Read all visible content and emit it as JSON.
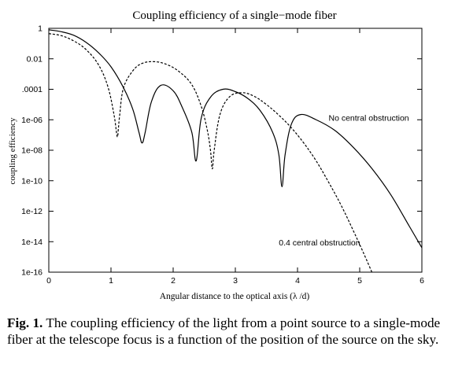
{
  "chart_data": {
    "type": "line",
    "title": "Coupling efficiency of a single−mode fiber",
    "xlabel": "Angular distance to the optical axis (λ /d)",
    "ylabel": "coupling efficiency",
    "xlim": [
      0,
      6
    ],
    "ylim": [
      1e-16,
      1
    ],
    "yscale": "log",
    "xticks": [
      "0",
      "1",
      "2",
      "3",
      "4",
      "5",
      "6"
    ],
    "yticks": [
      {
        "value": 1,
        "label": "1"
      },
      {
        "value": 0.01,
        "label": "0.01"
      },
      {
        "value": 0.0001,
        "label": ".0001"
      },
      {
        "value": 1e-06,
        "label": "1e-06"
      },
      {
        "value": 1e-08,
        "label": "1e-08"
      },
      {
        "value": 1e-10,
        "label": "1e-10"
      },
      {
        "value": 1e-12,
        "label": "1e-12"
      },
      {
        "value": 1e-14,
        "label": "1e-14"
      },
      {
        "value": 1e-16,
        "label": "1e-16"
      }
    ],
    "grid": false,
    "series": [
      {
        "name": "No central obstruction",
        "style": "solid",
        "color": "#000000",
        "x": [
          0,
          0.2,
          0.4,
          0.6,
          0.8,
          1.0,
          1.2,
          1.35,
          1.45,
          1.5,
          1.55,
          1.65,
          1.8,
          2.0,
          2.15,
          2.3,
          2.37,
          2.45,
          2.6,
          2.8,
          3.0,
          3.2,
          3.4,
          3.6,
          3.7,
          3.75,
          3.8,
          3.9,
          4.05,
          4.3,
          4.6,
          4.9,
          5.2,
          5.5,
          5.8,
          6.0
        ],
        "y": [
          0.8,
          0.6,
          0.35,
          0.12,
          0.025,
          0.003,
          0.00013,
          5e-06,
          1.5e-07,
          3e-08,
          1.5e-07,
          1.5e-05,
          0.00018,
          8e-05,
          6e-06,
          1.5e-07,
          2e-09,
          1.2e-06,
          3e-05,
          0.0001,
          7e-05,
          2.5e-05,
          4e-06,
          1.5e-07,
          5e-09,
          4e-11,
          5e-09,
          5e-07,
          2.2e-06,
          1e-06,
          2e-07,
          1.5e-08,
          6e-10,
          1.2e-11,
          1e-13,
          4e-15
        ]
      },
      {
        "name": "0.4 central obstruction",
        "style": "dashed",
        "color": "#000000",
        "x": [
          0,
          0.2,
          0.4,
          0.6,
          0.8,
          0.95,
          1.05,
          1.1,
          1.12,
          1.14,
          1.2,
          1.35,
          1.5,
          1.7,
          1.9,
          2.1,
          2.3,
          2.45,
          2.55,
          2.6,
          2.63,
          2.66,
          2.75,
          2.9,
          3.1,
          3.3,
          3.5,
          3.7,
          3.9,
          4.1,
          4.3,
          4.5,
          4.7,
          4.9,
          5.1,
          5.3
        ],
        "y": [
          0.45,
          0.33,
          0.15,
          0.04,
          0.004,
          0.00015,
          2e-06,
          8e-08,
          3e-07,
          2e-06,
          0.00012,
          0.0016,
          0.005,
          0.0065,
          0.0042,
          0.0014,
          0.0002,
          8e-06,
          2e-07,
          1e-08,
          6e-10,
          1e-08,
          2e-06,
          3e-05,
          6e-05,
          3.5e-05,
          1e-05,
          2e-06,
          3e-07,
          3e-08,
          2e-09,
          8e-11,
          2.5e-12,
          5e-14,
          8e-16,
          1e-17
        ]
      }
    ],
    "annotations": [
      {
        "text": "No central obstruction",
        "x": 4.5,
        "y": 1.2e-06
      },
      {
        "text": "0.4 central obstruction",
        "x": 3.7,
        "y": 8e-15
      }
    ]
  },
  "caption": {
    "label": "Fig. 1.",
    "text": " The coupling efficiency of the light from a point source to a single-mode fiber at the telescope focus is a function of the position of the source on the sky."
  }
}
